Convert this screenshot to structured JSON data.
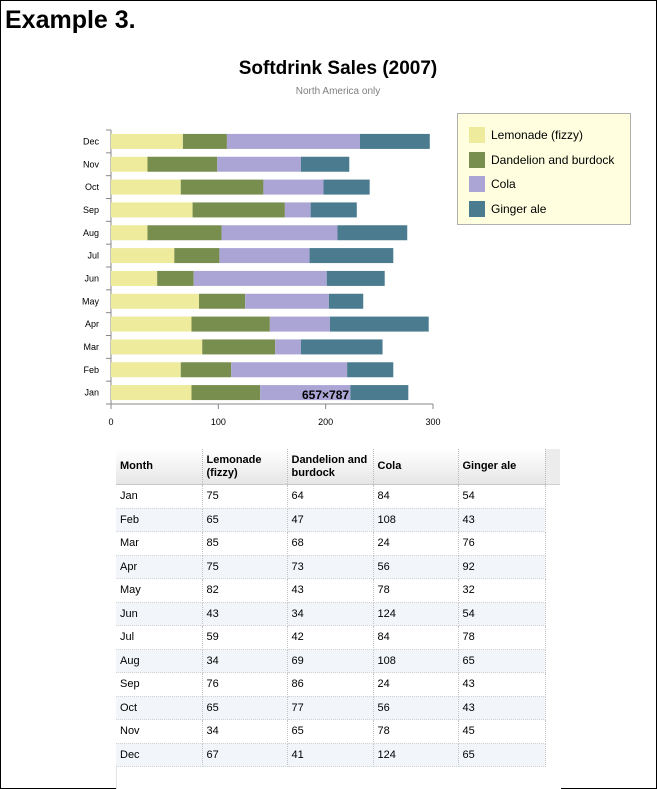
{
  "page": {
    "heading": "Example 3.",
    "size_label": "657×787"
  },
  "chart_data": {
    "type": "bar",
    "orientation": "horizontal",
    "stacked": true,
    "title": "Softdrink Sales (2007)",
    "subtitle": "North America only",
    "categories": [
      "Jan",
      "Feb",
      "Mar",
      "Apr",
      "May",
      "Jun",
      "Jul",
      "Aug",
      "Sep",
      "Oct",
      "Nov",
      "Dec"
    ],
    "series": [
      {
        "name": "Lemonade (fizzy)",
        "color": "#eeeb9c",
        "values": [
          75,
          65,
          85,
          75,
          82,
          43,
          59,
          34,
          76,
          65,
          34,
          67
        ]
      },
      {
        "name": "Dandelion and burdock",
        "color": "#788e4e",
        "values": [
          64,
          47,
          68,
          73,
          43,
          34,
          42,
          69,
          86,
          77,
          65,
          41
        ]
      },
      {
        "name": "Cola",
        "color": "#aaa5d5",
        "values": [
          84,
          108,
          24,
          56,
          78,
          124,
          84,
          108,
          24,
          56,
          78,
          124
        ]
      },
      {
        "name": "Ginger ale",
        "color": "#4a7b8e",
        "values": [
          54,
          43,
          76,
          92,
          32,
          54,
          78,
          65,
          43,
          43,
          45,
          65
        ]
      }
    ],
    "xlim": [
      0,
      300
    ],
    "xticks": [
      0,
      100,
      200,
      300
    ],
    "xlabel": "",
    "ylabel": "",
    "grid": false,
    "legend_position": "top-right"
  },
  "table": {
    "headers": [
      "Month",
      "Lemonade (fizzy)",
      "Dandelion and burdock",
      "Cola",
      "Ginger ale"
    ],
    "rows": [
      [
        "Jan",
        "75",
        "64",
        "84",
        "54"
      ],
      [
        "Feb",
        "65",
        "47",
        "108",
        "43"
      ],
      [
        "Mar",
        "85",
        "68",
        "24",
        "76"
      ],
      [
        "Apr",
        "75",
        "73",
        "56",
        "92"
      ],
      [
        "May",
        "82",
        "43",
        "78",
        "32"
      ],
      [
        "Jun",
        "43",
        "34",
        "124",
        "54"
      ],
      [
        "Jul",
        "59",
        "42",
        "84",
        "78"
      ],
      [
        "Aug",
        "34",
        "69",
        "108",
        "65"
      ],
      [
        "Sep",
        "76",
        "86",
        "24",
        "43"
      ],
      [
        "Oct",
        "65",
        "77",
        "56",
        "43"
      ],
      [
        "Nov",
        "34",
        "65",
        "78",
        "45"
      ],
      [
        "Dec",
        "67",
        "41",
        "124",
        "65"
      ]
    ]
  }
}
